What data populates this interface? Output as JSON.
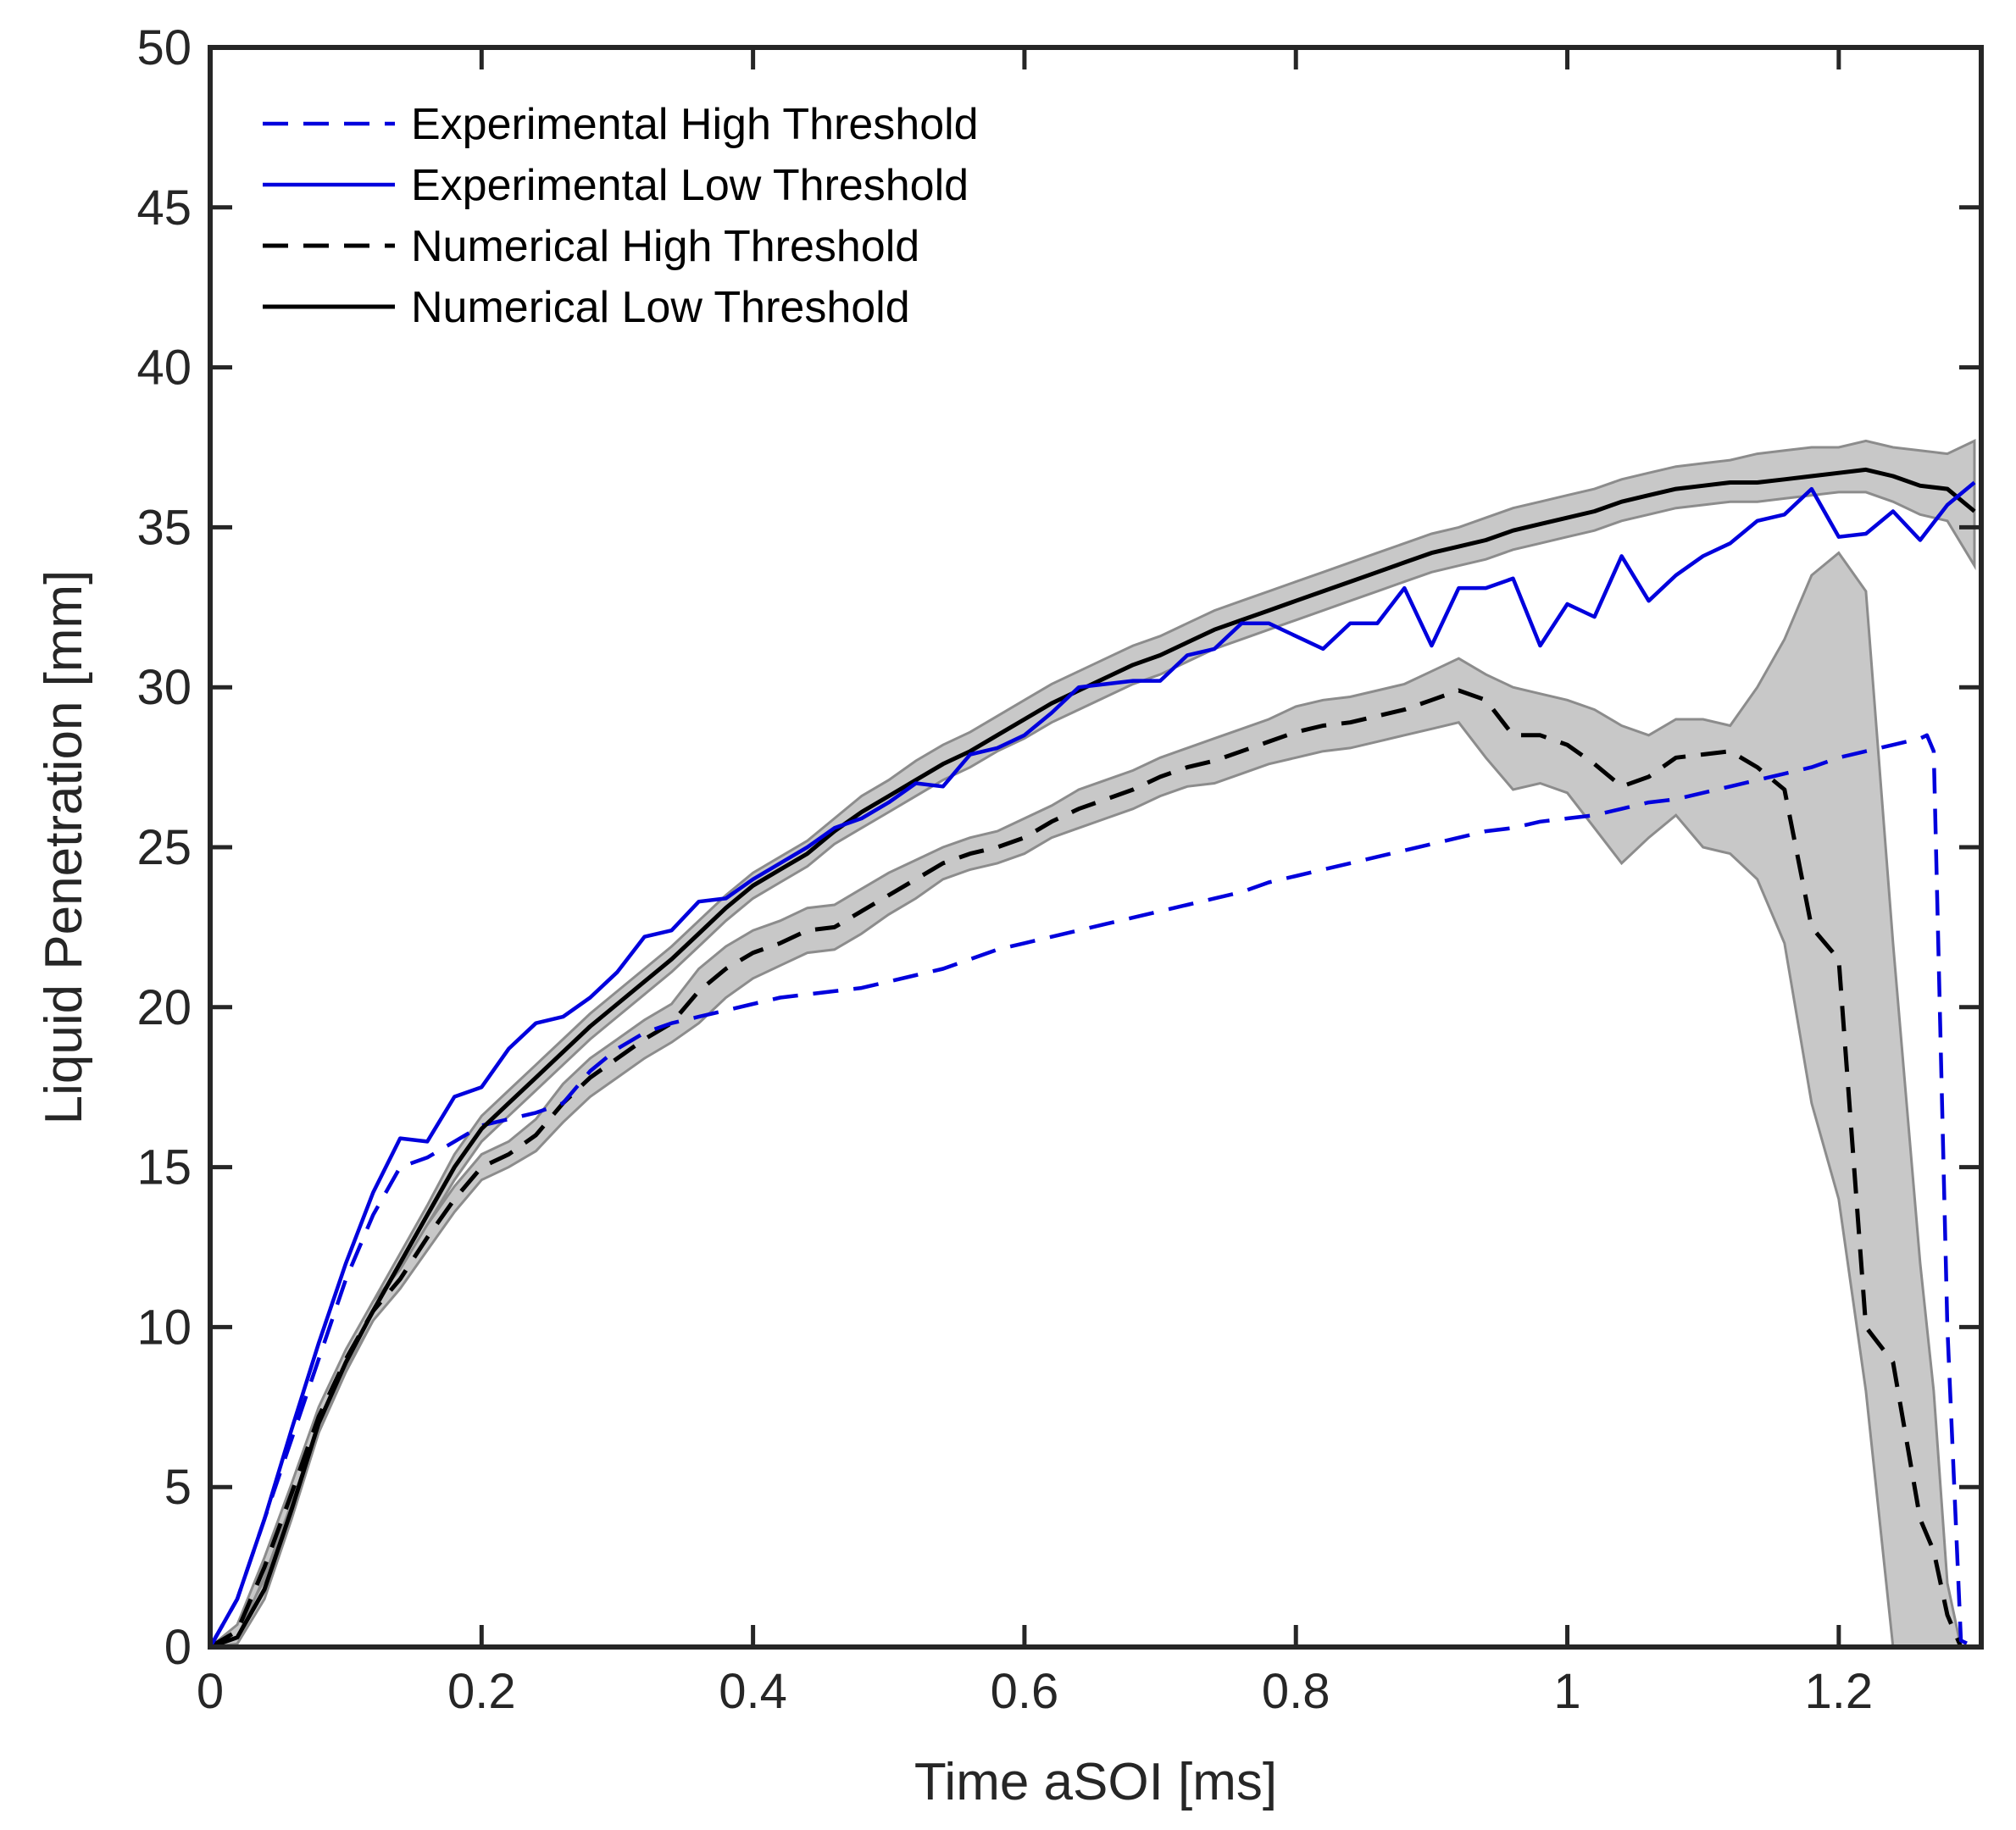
{
  "chart_data": {
    "type": "line",
    "title": "",
    "xlabel": "Time aSOI [ms]",
    "ylabel": "Liquid Penetration [mm]",
    "xlim": [
      0,
      1.305
    ],
    "ylim": [
      0,
      50
    ],
    "xticks": [
      0,
      0.2,
      0.4,
      0.6,
      0.8,
      1,
      1.2
    ],
    "xtick_labels": [
      "0",
      "0.2",
      "0.4",
      "0.6",
      "0.8",
      "1",
      "1.2"
    ],
    "yticks": [
      0,
      5,
      10,
      15,
      20,
      25,
      30,
      35,
      40,
      45,
      50
    ],
    "ytick_labels": [
      "0",
      "5",
      "10",
      "15",
      "20",
      "25",
      "30",
      "35",
      "40",
      "45",
      "50"
    ],
    "grid": false,
    "legend_position": "top-left",
    "colors": {
      "blue": "#0000dd",
      "black": "#000000",
      "band_fill": "#c8c8c8",
      "band_edge": "#8c8c8c"
    },
    "series": [
      {
        "name": "Experimental High Threshold",
        "color": "#0000dd",
        "style": "dashed",
        "x": [
          0,
          0.02,
          0.04,
          0.06,
          0.08,
          0.1,
          0.12,
          0.14,
          0.16,
          0.18,
          0.2,
          0.22,
          0.24,
          0.26,
          0.28,
          0.3,
          0.32,
          0.34,
          0.36,
          0.38,
          0.4,
          0.42,
          0.44,
          0.46,
          0.48,
          0.5,
          0.52,
          0.54,
          0.56,
          0.58,
          0.6,
          0.62,
          0.64,
          0.66,
          0.68,
          0.7,
          0.72,
          0.74,
          0.76,
          0.78,
          0.8,
          0.82,
          0.84,
          0.86,
          0.88,
          0.9,
          0.92,
          0.94,
          0.96,
          0.98,
          1.0,
          1.02,
          1.04,
          1.06,
          1.08,
          1.1,
          1.12,
          1.14,
          1.16,
          1.18,
          1.2,
          1.22,
          1.24,
          1.26,
          1.265,
          1.27,
          1.28,
          1.29,
          1.3
        ],
        "y": [
          0,
          1.5,
          4.0,
          6.5,
          9.0,
          11.5,
          13.5,
          15.0,
          15.3,
          15.8,
          16.3,
          16.5,
          16.7,
          17.0,
          18.0,
          18.7,
          19.2,
          19.5,
          19.7,
          19.9,
          20.1,
          20.3,
          20.4,
          20.5,
          20.6,
          20.8,
          21.0,
          21.2,
          21.5,
          21.8,
          22.0,
          22.2,
          22.4,
          22.6,
          22.8,
          23.0,
          23.2,
          23.4,
          23.6,
          23.9,
          24.1,
          24.3,
          24.5,
          24.7,
          24.9,
          25.1,
          25.3,
          25.5,
          25.6,
          25.8,
          25.9,
          26.0,
          26.2,
          26.4,
          26.5,
          26.7,
          26.9,
          27.1,
          27.3,
          27.5,
          27.8,
          28.0,
          28.2,
          28.4,
          28.5,
          28.0,
          10.0,
          0.2,
          0.0
        ]
      },
      {
        "name": "Experimental Low Threshold",
        "color": "#0000dd",
        "style": "solid",
        "x": [
          0,
          0.02,
          0.04,
          0.06,
          0.08,
          0.1,
          0.12,
          0.14,
          0.16,
          0.18,
          0.2,
          0.22,
          0.24,
          0.26,
          0.28,
          0.3,
          0.32,
          0.34,
          0.36,
          0.38,
          0.4,
          0.42,
          0.44,
          0.46,
          0.48,
          0.5,
          0.52,
          0.54,
          0.56,
          0.58,
          0.6,
          0.62,
          0.64,
          0.66,
          0.68,
          0.7,
          0.72,
          0.74,
          0.76,
          0.78,
          0.8,
          0.82,
          0.84,
          0.86,
          0.88,
          0.9,
          0.92,
          0.94,
          0.96,
          0.98,
          1.0,
          1.02,
          1.04,
          1.06,
          1.08,
          1.1,
          1.12,
          1.14,
          1.16,
          1.18,
          1.2,
          1.22,
          1.24,
          1.26,
          1.28,
          1.3
        ],
        "y": [
          0,
          1.5,
          4.0,
          6.8,
          9.5,
          12.0,
          14.2,
          15.9,
          15.8,
          17.2,
          17.5,
          18.7,
          19.5,
          19.7,
          20.3,
          21.1,
          22.2,
          22.4,
          23.3,
          23.4,
          24.0,
          24.5,
          25.0,
          25.6,
          25.9,
          26.4,
          27.0,
          26.9,
          27.9,
          28.1,
          28.5,
          29.2,
          30.0,
          30.1,
          30.2,
          30.2,
          31.0,
          31.2,
          32.0,
          32.0,
          31.6,
          31.2,
          32.0,
          32.0,
          33.1,
          31.3,
          33.1,
          33.1,
          33.4,
          31.3,
          32.6,
          32.2,
          34.1,
          32.7,
          33.5,
          34.1,
          34.5,
          35.2,
          35.4,
          36.2,
          34.7,
          34.8,
          35.5,
          34.6,
          35.7,
          36.4
        ]
      },
      {
        "name": "Numerical High Threshold",
        "color": "#000000",
        "style": "dashed",
        "x": [
          0,
          0.02,
          0.04,
          0.06,
          0.08,
          0.1,
          0.12,
          0.14,
          0.16,
          0.18,
          0.2,
          0.22,
          0.24,
          0.26,
          0.28,
          0.3,
          0.32,
          0.34,
          0.36,
          0.38,
          0.4,
          0.42,
          0.44,
          0.46,
          0.48,
          0.5,
          0.52,
          0.54,
          0.56,
          0.58,
          0.6,
          0.62,
          0.64,
          0.66,
          0.68,
          0.7,
          0.72,
          0.74,
          0.76,
          0.78,
          0.8,
          0.82,
          0.84,
          0.86,
          0.88,
          0.9,
          0.92,
          0.94,
          0.96,
          0.98,
          1.0,
          1.02,
          1.04,
          1.06,
          1.08,
          1.1,
          1.12,
          1.14,
          1.16,
          1.18,
          1.2,
          1.22,
          1.24,
          1.26,
          1.27,
          1.28,
          1.29
        ],
        "y": [
          0,
          0.5,
          2.5,
          4.8,
          7.2,
          9.0,
          10.5,
          11.5,
          12.8,
          14.0,
          15.0,
          15.4,
          16.0,
          17.0,
          17.8,
          18.4,
          19.0,
          19.5,
          20.5,
          21.2,
          21.7,
          22.0,
          22.4,
          22.5,
          23.0,
          23.5,
          24.0,
          24.5,
          24.8,
          25.0,
          25.3,
          25.8,
          26.2,
          26.5,
          26.8,
          27.2,
          27.5,
          27.7,
          28.0,
          28.3,
          28.6,
          28.8,
          28.9,
          29.1,
          29.3,
          29.6,
          29.9,
          29.6,
          28.5,
          28.5,
          28.2,
          27.6,
          26.9,
          27.2,
          27.8,
          27.9,
          28.0,
          27.5,
          26.8,
          22.5,
          21.5,
          10.0,
          8.9,
          4.0,
          3.0,
          1.0,
          0.0
        ]
      },
      {
        "name": "Numerical Low Threshold",
        "color": "#000000",
        "style": "solid",
        "x": [
          0,
          0.02,
          0.04,
          0.06,
          0.08,
          0.1,
          0.12,
          0.14,
          0.16,
          0.18,
          0.2,
          0.22,
          0.24,
          0.26,
          0.28,
          0.3,
          0.32,
          0.34,
          0.36,
          0.38,
          0.4,
          0.42,
          0.44,
          0.46,
          0.48,
          0.5,
          0.52,
          0.54,
          0.56,
          0.58,
          0.6,
          0.62,
          0.64,
          0.66,
          0.68,
          0.7,
          0.72,
          0.74,
          0.76,
          0.78,
          0.8,
          0.82,
          0.84,
          0.86,
          0.88,
          0.9,
          0.92,
          0.94,
          0.96,
          0.98,
          1.0,
          1.02,
          1.04,
          1.06,
          1.08,
          1.1,
          1.12,
          1.14,
          1.16,
          1.18,
          1.2,
          1.22,
          1.24,
          1.26,
          1.28,
          1.3
        ],
        "y": [
          0,
          0.3,
          1.8,
          4.3,
          7.0,
          8.9,
          10.5,
          12.0,
          13.5,
          15.0,
          16.2,
          17.0,
          17.8,
          18.6,
          19.4,
          20.1,
          20.8,
          21.5,
          22.3,
          23.1,
          23.8,
          24.3,
          24.8,
          25.5,
          26.1,
          26.6,
          27.1,
          27.6,
          28.0,
          28.5,
          29.0,
          29.5,
          29.9,
          30.3,
          30.7,
          31.0,
          31.4,
          31.8,
          32.1,
          32.4,
          32.7,
          33.0,
          33.3,
          33.6,
          33.9,
          34.2,
          34.4,
          34.6,
          34.9,
          35.1,
          35.3,
          35.5,
          35.8,
          36.0,
          36.2,
          36.3,
          36.4,
          36.4,
          36.5,
          36.6,
          36.7,
          36.8,
          36.6,
          36.3,
          36.2,
          35.5
        ]
      }
    ],
    "bands": [
      {
        "name": "Numerical Low Threshold spread",
        "x": [
          0,
          0.02,
          0.04,
          0.06,
          0.08,
          0.1,
          0.12,
          0.14,
          0.16,
          0.18,
          0.2,
          0.22,
          0.24,
          0.26,
          0.28,
          0.3,
          0.32,
          0.34,
          0.36,
          0.38,
          0.4,
          0.42,
          0.44,
          0.46,
          0.48,
          0.5,
          0.52,
          0.54,
          0.56,
          0.58,
          0.6,
          0.62,
          0.64,
          0.66,
          0.68,
          0.7,
          0.72,
          0.74,
          0.76,
          0.78,
          0.8,
          0.82,
          0.84,
          0.86,
          0.88,
          0.9,
          0.92,
          0.94,
          0.96,
          0.98,
          1.0,
          1.02,
          1.04,
          1.06,
          1.08,
          1.1,
          1.12,
          1.14,
          1.16,
          1.18,
          1.2,
          1.22,
          1.24,
          1.26,
          1.28,
          1.3
        ],
        "lower": [
          0,
          0.1,
          1.5,
          4.0,
          6.7,
          8.6,
          10.2,
          11.7,
          13.2,
          14.6,
          15.8,
          16.6,
          17.4,
          18.2,
          19.0,
          19.7,
          20.4,
          21.1,
          21.9,
          22.7,
          23.4,
          23.9,
          24.4,
          25.1,
          25.6,
          26.1,
          26.6,
          27.1,
          27.5,
          28.0,
          28.4,
          28.9,
          29.3,
          29.7,
          30.1,
          30.4,
          30.8,
          31.2,
          31.5,
          31.8,
          32.1,
          32.4,
          32.7,
          33.0,
          33.3,
          33.6,
          33.8,
          34.0,
          34.3,
          34.5,
          34.7,
          34.9,
          35.2,
          35.4,
          35.6,
          35.7,
          35.8,
          35.8,
          35.9,
          36.0,
          36.1,
          36.1,
          35.8,
          35.4,
          35.2,
          33.8
        ],
        "upper": [
          0,
          0.5,
          2.1,
          4.6,
          7.3,
          9.2,
          10.8,
          12.3,
          13.8,
          15.4,
          16.6,
          17.4,
          18.2,
          19.0,
          19.8,
          20.5,
          21.2,
          21.9,
          22.7,
          23.5,
          24.2,
          24.7,
          25.2,
          25.9,
          26.6,
          27.1,
          27.7,
          28.2,
          28.6,
          29.1,
          29.6,
          30.1,
          30.5,
          30.9,
          31.3,
          31.6,
          32.0,
          32.4,
          32.7,
          33.0,
          33.3,
          33.6,
          33.9,
          34.2,
          34.5,
          34.8,
          35.0,
          35.3,
          35.6,
          35.8,
          36.0,
          36.2,
          36.5,
          36.7,
          36.9,
          37.0,
          37.1,
          37.3,
          37.4,
          37.5,
          37.5,
          37.7,
          37.5,
          37.4,
          37.3,
          37.7
        ]
      },
      {
        "name": "Numerical High Threshold spread",
        "x": [
          0,
          0.02,
          0.04,
          0.06,
          0.08,
          0.1,
          0.12,
          0.14,
          0.16,
          0.18,
          0.2,
          0.22,
          0.24,
          0.26,
          0.28,
          0.3,
          0.32,
          0.34,
          0.36,
          0.38,
          0.4,
          0.42,
          0.44,
          0.46,
          0.48,
          0.5,
          0.52,
          0.54,
          0.56,
          0.58,
          0.6,
          0.62,
          0.64,
          0.66,
          0.68,
          0.7,
          0.72,
          0.74,
          0.76,
          0.78,
          0.8,
          0.82,
          0.84,
          0.86,
          0.88,
          0.9,
          0.92,
          0.94,
          0.96,
          0.98,
          1.0,
          1.02,
          1.04,
          1.06,
          1.08,
          1.1,
          1.12,
          1.14,
          1.16,
          1.18,
          1.2,
          1.22,
          1.24,
          1.26,
          1.27,
          1.28,
          1.29
        ],
        "lower": [
          0,
          0.3,
          2.2,
          4.5,
          6.9,
          8.7,
          10.2,
          11.2,
          12.4,
          13.6,
          14.6,
          15.0,
          15.5,
          16.4,
          17.2,
          17.8,
          18.4,
          18.9,
          19.5,
          20.3,
          20.9,
          21.3,
          21.7,
          21.8,
          22.3,
          22.9,
          23.4,
          24.0,
          24.3,
          24.5,
          24.8,
          25.3,
          25.6,
          25.9,
          26.2,
          26.6,
          26.9,
          27.0,
          27.3,
          27.6,
          27.8,
          28.0,
          28.1,
          28.3,
          28.5,
          28.7,
          28.9,
          27.8,
          26.8,
          27.0,
          26.7,
          25.6,
          24.5,
          25.3,
          26.0,
          25.0,
          24.8,
          24.0,
          22.0,
          17.0,
          14.0,
          8.0,
          0,
          0,
          0,
          0,
          0
        ],
        "upper": [
          0,
          0.7,
          2.8,
          5.1,
          7.5,
          9.3,
          10.8,
          11.8,
          13.2,
          14.4,
          15.4,
          15.8,
          16.5,
          17.6,
          18.4,
          19.0,
          19.6,
          20.1,
          21.2,
          21.9,
          22.4,
          22.7,
          23.1,
          23.2,
          23.7,
          24.2,
          24.6,
          25.0,
          25.3,
          25.5,
          25.9,
          26.3,
          26.8,
          27.1,
          27.4,
          27.8,
          28.1,
          28.4,
          28.7,
          29.0,
          29.4,
          29.6,
          29.7,
          29.9,
          30.1,
          30.5,
          30.9,
          30.4,
          30.0,
          29.8,
          29.6,
          29.3,
          28.8,
          28.5,
          29.0,
          29.0,
          28.8,
          30.0,
          31.5,
          33.5,
          34.2,
          33.0,
          22.0,
          12.0,
          8.0,
          2.0,
          0.0
        ]
      }
    ]
  }
}
